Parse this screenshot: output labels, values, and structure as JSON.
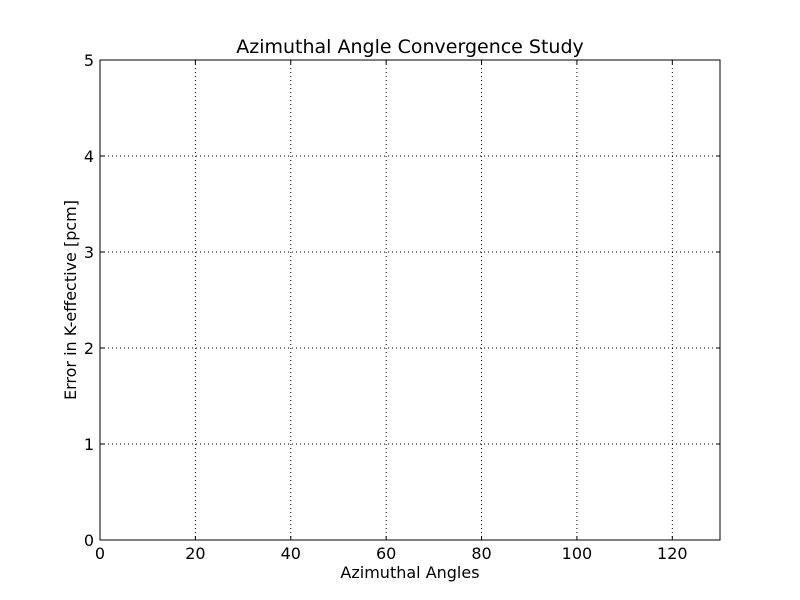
{
  "chart_data": {
    "type": "line",
    "title": "Azimuthal Angle Convergence Study",
    "xlabel": "Azimuthal Angles",
    "ylabel": "Error in K-effective [pcm]",
    "xlim": [
      0,
      130
    ],
    "ylim": [
      0,
      5
    ],
    "x_ticks": [
      0,
      20,
      40,
      60,
      80,
      100,
      120
    ],
    "y_ticks": [
      0,
      1,
      2,
      3,
      4,
      5
    ],
    "grid": true,
    "series": []
  }
}
